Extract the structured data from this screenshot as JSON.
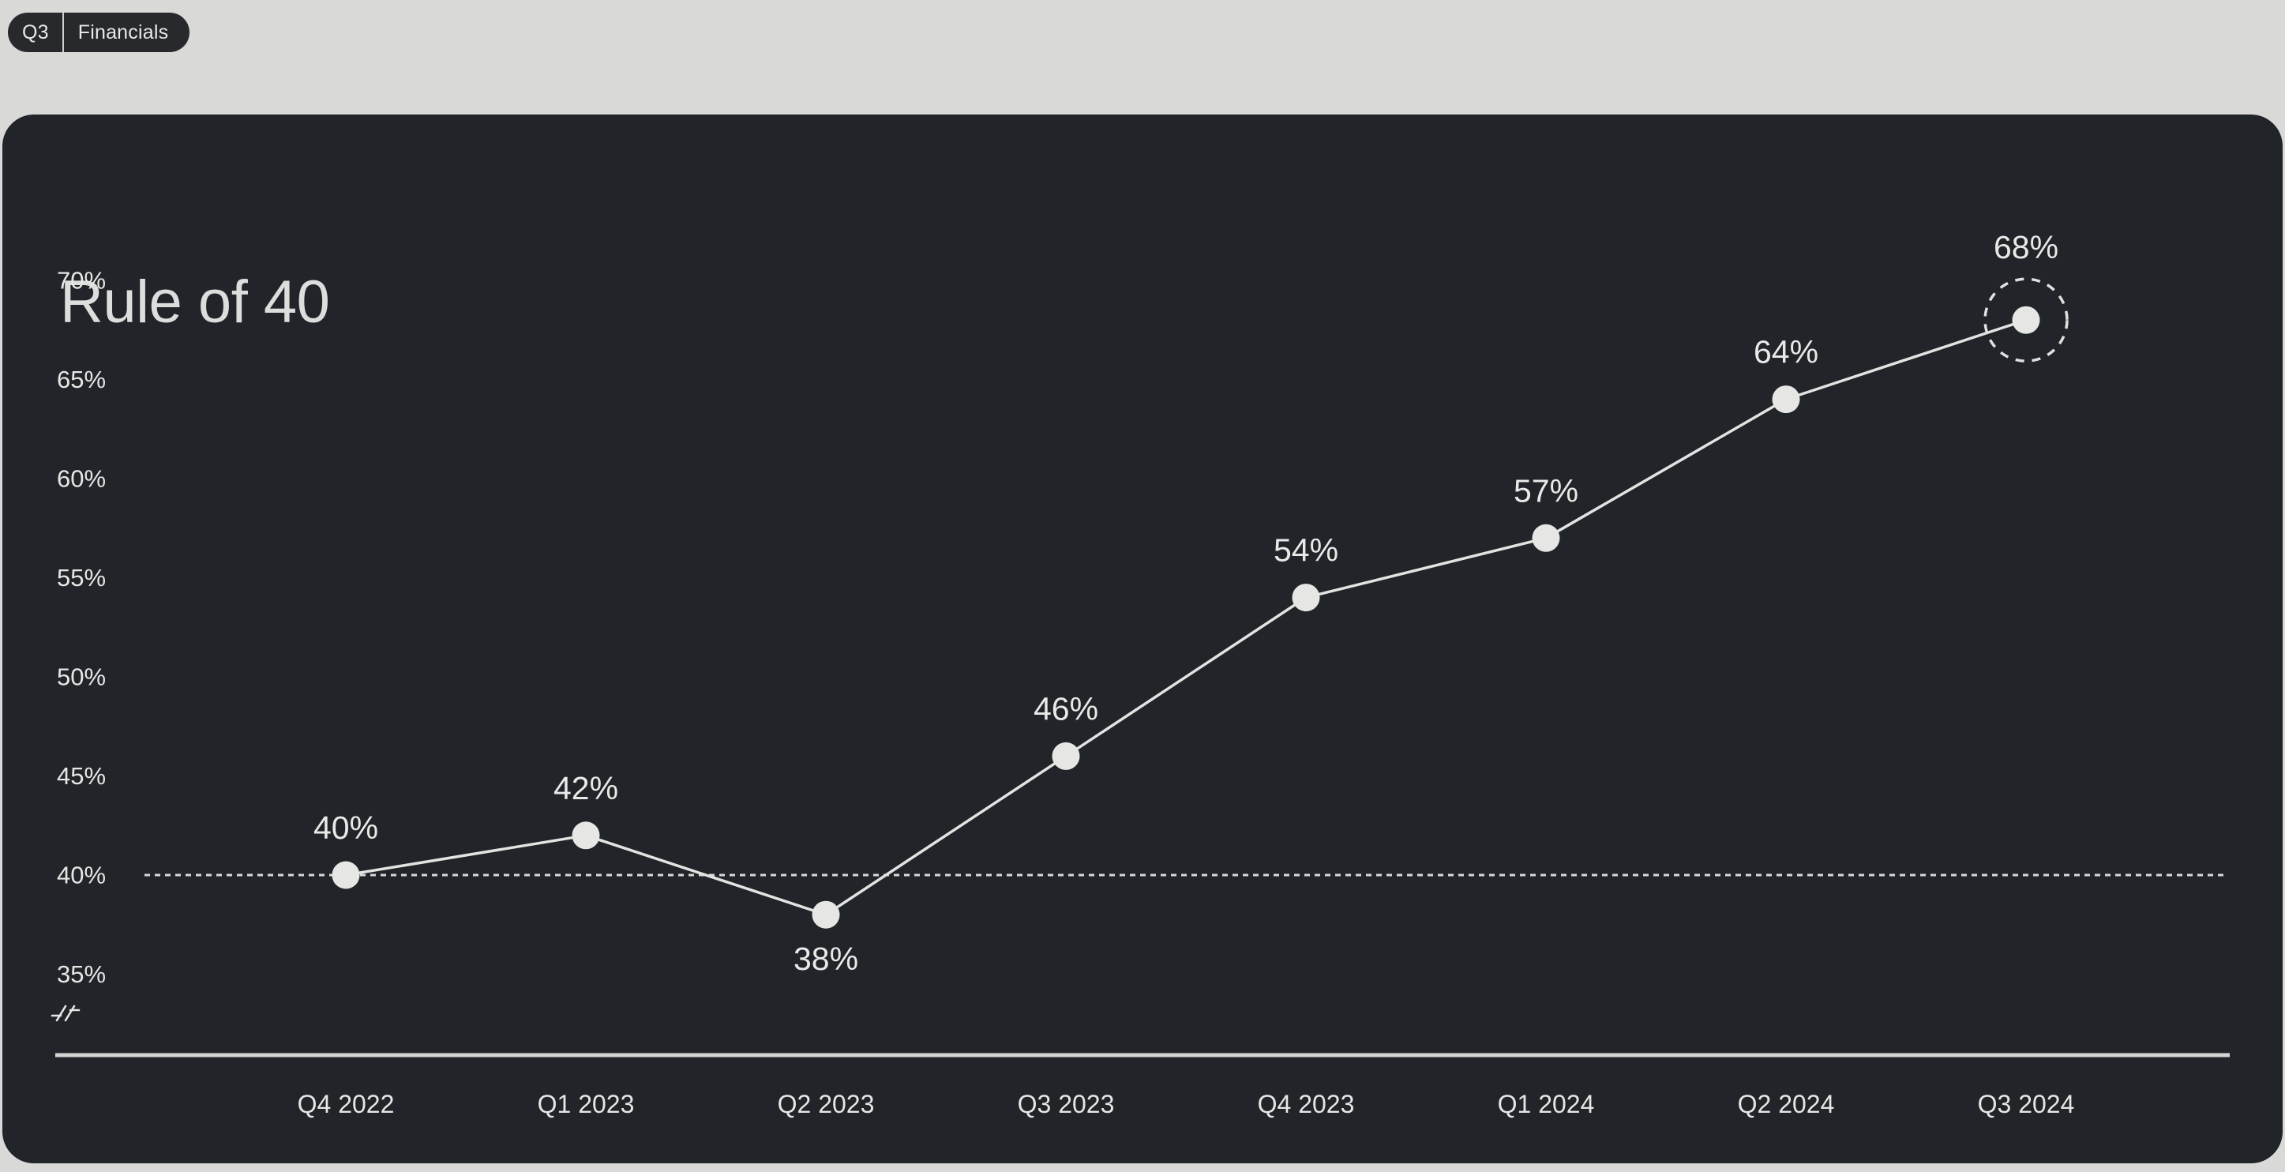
{
  "window": {
    "background": "#d9d9d8"
  },
  "badge": {
    "quarter_label": "Q3",
    "category_label": "Financials",
    "background": "#27292c",
    "text_color": "#e8e9e8",
    "divider_color": "#cfd0d0"
  },
  "card": {
    "background": "#212428",
    "title": "Rule of 40",
    "title_color": "#dcdedd"
  },
  "chart_data": {
    "type": "line",
    "title": "Rule of 40",
    "categories": [
      "Q4 2022",
      "Q1 2023",
      "Q2 2023",
      "Q3 2023",
      "Q4 2023",
      "Q1 2024",
      "Q2 2024",
      "Q3 2024"
    ],
    "series": [
      {
        "name": "Rule of 40",
        "values": [
          40,
          42,
          38,
          46,
          54,
          57,
          64,
          68
        ]
      }
    ],
    "data_labels": [
      "40%",
      "42%",
      "38%",
      "46%",
      "54%",
      "57%",
      "64%",
      "68%"
    ],
    "value_suffix": "%",
    "y_ticks": [
      "70%",
      "65%",
      "60%",
      "55%",
      "50%",
      "45%",
      "40%",
      "35%"
    ],
    "y_tick_values": [
      70,
      65,
      60,
      55,
      50,
      45,
      40,
      35
    ],
    "ylim": [
      35,
      70
    ],
    "grid": false,
    "legend": false,
    "reference_line": {
      "value": 40,
      "style": "dotted"
    },
    "axis_break_symbol": "-//-",
    "highlighted_point": {
      "category": "Q3 2024",
      "value": 68,
      "style": "dashed-ring"
    },
    "colors": {
      "line": "#e3e4e2",
      "marker": "#e6e7e5",
      "data_label": "#e9eae8",
      "tick_label": "#e6e7e5",
      "reference_line": "#d8d9da",
      "axis_line": "#d5d6d4",
      "highlight_ring": "#e0e1df"
    }
  }
}
